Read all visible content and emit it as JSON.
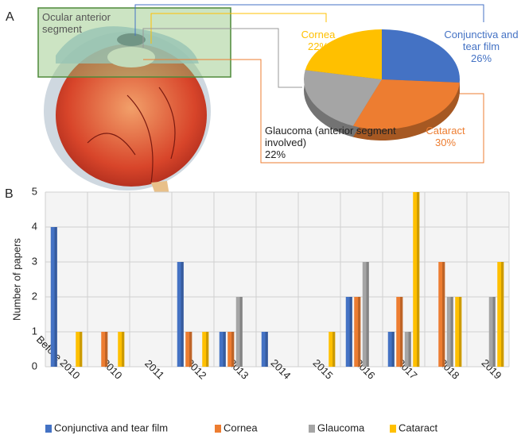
{
  "panels": [
    "A",
    "B"
  ],
  "chart_data": [
    {
      "type": "pie",
      "annotation": "Ocular anterior segment",
      "categories": [
        "Conjunctiva and tear film",
        "Cataract",
        "Glaucoma (anterior segment involved)",
        "Cornea"
      ],
      "values": [
        26,
        30,
        22,
        22
      ],
      "value_labels": [
        "26%",
        "30%",
        "22%",
        "22%"
      ],
      "colors": [
        "#4472c4",
        "#ed7d31",
        "#a5a5a5",
        "#ffc000"
      ]
    },
    {
      "type": "bar",
      "ylabel": "Number of papers",
      "categories": [
        "Before 2010",
        "2010",
        "2011",
        "2012",
        "2013",
        "2014",
        "2015",
        "2016",
        "2017",
        "2018",
        "2019"
      ],
      "series": [
        {
          "name": "Conjunctiva and tear film",
          "color": "#4472c4",
          "values": [
            4,
            0,
            0,
            3,
            1,
            1,
            0,
            2,
            1,
            0,
            0
          ]
        },
        {
          "name": "Cornea",
          "color": "#ed7d31",
          "values": [
            0,
            1,
            0,
            1,
            1,
            0,
            0,
            2,
            2,
            3,
            0
          ]
        },
        {
          "name": "Glaucoma",
          "color": "#a5a5a5",
          "values": [
            0,
            0,
            0,
            0,
            2,
            0,
            0,
            3,
            1,
            2,
            2
          ]
        },
        {
          "name": "Cataract",
          "color": "#ffc000",
          "values": [
            1,
            1,
            0,
            1,
            0,
            0,
            1,
            0,
            5,
            2,
            3
          ]
        }
      ],
      "ylim": [
        0,
        5
      ],
      "yticks": [
        0,
        1,
        2,
        3,
        4,
        5
      ],
      "grid": true,
      "legend": "bottom"
    }
  ]
}
